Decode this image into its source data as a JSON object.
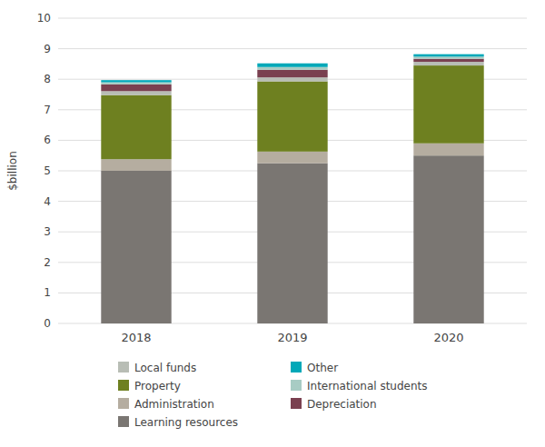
{
  "chart_data": {
    "type": "bar",
    "stacked": true,
    "y_label": "$billion",
    "categories": [
      "2018",
      "2019",
      "2020"
    ],
    "series": [
      {
        "name": "Learning resources",
        "color": "#7a7672",
        "values": [
          5.0,
          5.25,
          5.5
        ]
      },
      {
        "name": "Administration",
        "color": "#b5ada0",
        "values": [
          0.38,
          0.38,
          0.4
        ]
      },
      {
        "name": "Property",
        "color": "#6e8020",
        "values": [
          2.1,
          2.3,
          2.55
        ]
      },
      {
        "name": "Local funds",
        "color": "#b8bdb5",
        "values": [
          0.13,
          0.13,
          0.12
        ]
      },
      {
        "name": "Depreciation",
        "color": "#7a4050",
        "values": [
          0.22,
          0.25,
          0.1
        ]
      },
      {
        "name": "International students",
        "color": "#a8ccc4",
        "values": [
          0.07,
          0.09,
          0.07
        ]
      },
      {
        "name": "Other",
        "color": "#00a8b8",
        "values": [
          0.07,
          0.12,
          0.08
        ]
      }
    ],
    "ylim": [
      0,
      10
    ],
    "yticks": [
      0,
      1,
      2,
      3,
      4,
      5,
      6,
      7,
      8,
      9,
      10
    ],
    "grid": true,
    "legend": "bottom"
  }
}
